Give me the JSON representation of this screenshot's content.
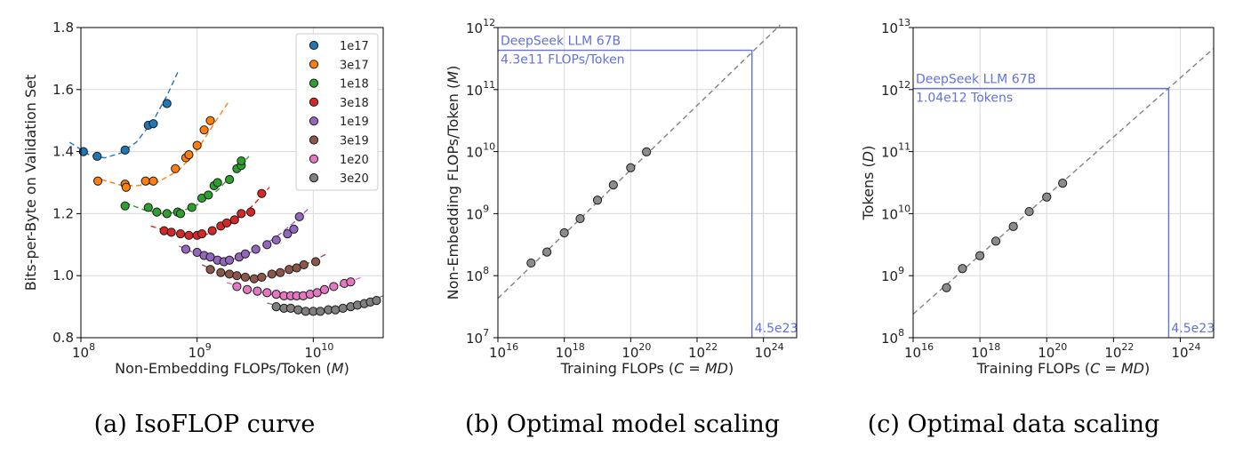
{
  "captions": [
    "(a) IsoFLOP curve",
    "(b) Optimal model scaling",
    "(c) Optimal data scaling"
  ],
  "chart_data": [
    {
      "type": "scatter",
      "xscale": "log",
      "xlim": [
        100000000.0,
        40000000000.0
      ],
      "ylim": [
        0.8,
        1.8
      ],
      "xlabel": "Non-Embedding FLOPs/Token (",
      "xlabel_var": "M",
      "ylabel": "Bits-per-Byte on Validation Set",
      "xticks": [
        {
          "v": 100000000.0,
          "label": "10",
          "exp": "8"
        },
        {
          "v": 1000000000.0,
          "label": "10",
          "exp": "9"
        },
        {
          "v": 10000000000.0,
          "label": "10",
          "exp": "10"
        }
      ],
      "yticks": [
        {
          "v": 0.8,
          "label": "0.8"
        },
        {
          "v": 1.0,
          "label": "1.0"
        },
        {
          "v": 1.2,
          "label": "1.2"
        },
        {
          "v": 1.4,
          "label": "1.4"
        },
        {
          "v": 1.6,
          "label": "1.6"
        },
        {
          "v": 1.8,
          "label": "1.8"
        }
      ],
      "grid": true,
      "legend_position": "top-right",
      "series": [
        {
          "name": "1e17",
          "color": "#1f77b4",
          "points": [
            [
              105000000.0,
              1.4
            ],
            [
              138000000.0,
              1.385
            ],
            [
              240000000.0,
              1.405
            ],
            [
              380000000.0,
              1.485
            ],
            [
              420000000.0,
              1.49
            ],
            [
              550000000.0,
              1.555
            ]
          ],
          "fit": [
            [
              80000000.0,
              1.43
            ],
            [
              120000000.0,
              1.388
            ],
            [
              160000000.0,
              1.38
            ],
            [
              220000000.0,
              1.395
            ],
            [
              300000000.0,
              1.43
            ],
            [
              420000000.0,
              1.5
            ],
            [
              550000000.0,
              1.58
            ],
            [
              700000000.0,
              1.665
            ]
          ]
        },
        {
          "name": "3e17",
          "color": "#ff7f0e",
          "points": [
            [
              140000000.0,
              1.305
            ],
            [
              240000000.0,
              1.295
            ],
            [
              245000000.0,
              1.285
            ],
            [
              360000000.0,
              1.305
            ],
            [
              420000000.0,
              1.305
            ],
            [
              650000000.0,
              1.345
            ],
            [
              800000000.0,
              1.38
            ],
            [
              850000000.0,
              1.39
            ],
            [
              1000000000.0,
              1.42
            ],
            [
              1150000000.0,
              1.47
            ],
            [
              1300000000.0,
              1.5
            ]
          ],
          "fit": [
            [
              150000000.0,
              1.31
            ],
            [
              220000000.0,
              1.292
            ],
            [
              300000000.0,
              1.29
            ],
            [
              450000000.0,
              1.3
            ],
            [
              700000000.0,
              1.34
            ],
            [
              1000000000.0,
              1.405
            ],
            [
              1400000000.0,
              1.49
            ],
            [
              1900000000.0,
              1.565
            ]
          ]
        },
        {
          "name": "1e18",
          "color": "#2ca02c",
          "points": [
            [
              240000000.0,
              1.225
            ],
            [
              380000000.0,
              1.22
            ],
            [
              450000000.0,
              1.205
            ],
            [
              550000000.0,
              1.2
            ],
            [
              680000000.0,
              1.205
            ],
            [
              720000000.0,
              1.2
            ],
            [
              900000000.0,
              1.22
            ],
            [
              1100000000.0,
              1.25
            ],
            [
              1250000000.0,
              1.26
            ],
            [
              1400000000.0,
              1.29
            ],
            [
              1500000000.0,
              1.3
            ],
            [
              1900000000.0,
              1.31
            ],
            [
              2200000000.0,
              1.345
            ],
            [
              2400000000.0,
              1.355
            ],
            [
              2400000000.0,
              1.37
            ]
          ],
          "fit": [
            [
              240000000.0,
              1.235
            ],
            [
              350000000.0,
              1.212
            ],
            [
              500000000.0,
              1.2
            ],
            [
              700000000.0,
              1.205
            ],
            [
              1000000000.0,
              1.228
            ],
            [
              1500000000.0,
              1.275
            ],
            [
              2100000000.0,
              1.335
            ],
            [
              2800000000.0,
              1.385
            ]
          ]
        },
        {
          "name": "3e18",
          "color": "#d62728",
          "points": [
            [
              520000000.0,
              1.145
            ],
            [
              600000000.0,
              1.14
            ],
            [
              720000000.0,
              1.135
            ],
            [
              850000000.0,
              1.13
            ],
            [
              1000000000.0,
              1.13
            ],
            [
              1100000000.0,
              1.135
            ],
            [
              1350000000.0,
              1.145
            ],
            [
              1600000000.0,
              1.16
            ],
            [
              1800000000.0,
              1.17
            ],
            [
              2100000000.0,
              1.18
            ],
            [
              2400000000.0,
              1.2
            ],
            [
              2900000000.0,
              1.205
            ],
            [
              3600000000.0,
              1.265
            ]
          ],
          "fit": [
            [
              400000000.0,
              1.16
            ],
            [
              600000000.0,
              1.14
            ],
            [
              900000000.0,
              1.128
            ],
            [
              1300000000.0,
              1.135
            ],
            [
              2000000000.0,
              1.17
            ],
            [
              3000000000.0,
              1.225
            ],
            [
              4200000000.0,
              1.285
            ]
          ]
        },
        {
          "name": "1e19",
          "color": "#9467bd",
          "points": [
            [
              800000000.0,
              1.085
            ],
            [
              1000000000.0,
              1.075
            ],
            [
              1150000000.0,
              1.065
            ],
            [
              1300000000.0,
              1.06
            ],
            [
              1500000000.0,
              1.05
            ],
            [
              1700000000.0,
              1.045
            ],
            [
              1900000000.0,
              1.05
            ],
            [
              2300000000.0,
              1.06
            ],
            [
              2600000000.0,
              1.07
            ],
            [
              3200000000.0,
              1.085
            ],
            [
              4000000000.0,
              1.1
            ],
            [
              4800000000.0,
              1.115
            ],
            [
              6000000000.0,
              1.135
            ],
            [
              6800000000.0,
              1.15
            ],
            [
              7600000000.0,
              1.19
            ]
          ],
          "fit": [
            [
              700000000.0,
              1.095
            ],
            [
              1000000000.0,
              1.07
            ],
            [
              1500000000.0,
              1.05
            ],
            [
              2200000000.0,
              1.055
            ],
            [
              3500000000.0,
              1.09
            ],
            [
              5000000000.0,
              1.13
            ],
            [
              7000000000.0,
              1.175
            ],
            [
              9000000000.0,
              1.215
            ]
          ]
        },
        {
          "name": "3e19",
          "color": "#8c564b",
          "points": [
            [
              1300000000.0,
              1.02
            ],
            [
              1600000000.0,
              1.01
            ],
            [
              1900000000.0,
              1.005
            ],
            [
              2200000000.0,
              1.0
            ],
            [
              2600000000.0,
              0.995
            ],
            [
              3100000000.0,
              0.99
            ],
            [
              3600000000.0,
              0.995
            ],
            [
              4400000000.0,
              1.005
            ],
            [
              5200000000.0,
              1.01
            ],
            [
              6200000000.0,
              1.02
            ],
            [
              7200000000.0,
              1.025
            ],
            [
              8300000000.0,
              1.035
            ],
            [
              10500000000.0,
              1.045
            ]
          ],
          "fit": [
            [
              1100000000.0,
              1.035
            ],
            [
              1600000000.0,
              1.01
            ],
            [
              2500000000.0,
              0.995
            ],
            [
              3800000000.0,
              0.995
            ],
            [
              6000000000.0,
              1.015
            ],
            [
              9000000000.0,
              1.04
            ],
            [
              13000000000.0,
              1.07
            ]
          ]
        },
        {
          "name": "1e20",
          "color": "#e377c2",
          "points": [
            [
              2200000000.0,
              0.965
            ],
            [
              2700000000.0,
              0.955
            ],
            [
              3300000000.0,
              0.95
            ],
            [
              4000000000.0,
              0.945
            ],
            [
              4800000000.0,
              0.94
            ],
            [
              5600000000.0,
              0.935
            ],
            [
              6400000000.0,
              0.935
            ],
            [
              7200000000.0,
              0.935
            ],
            [
              8200000000.0,
              0.935
            ],
            [
              9400000000.0,
              0.94
            ],
            [
              10800000000.0,
              0.945
            ],
            [
              12500000000.0,
              0.955
            ],
            [
              15000000000.0,
              0.965
            ],
            [
              18500000000.0,
              0.975
            ],
            [
              21000000000.0,
              0.98
            ]
          ],
          "fit": [
            [
              1800000000.0,
              0.978
            ],
            [
              2800000000.0,
              0.955
            ],
            [
              4500000000.0,
              0.938
            ],
            [
              7000000000.0,
              0.932
            ],
            [
              11000000000.0,
              0.945
            ],
            [
              17000000000.0,
              0.968
            ],
            [
              26000000000.0,
              0.995
            ]
          ]
        },
        {
          "name": "3e20",
          "color": "#7f7f7f",
          "points": [
            [
              4800000000.0,
              0.9
            ],
            [
              5600000000.0,
              0.895
            ],
            [
              6400000000.0,
              0.895
            ],
            [
              7400000000.0,
              0.89
            ],
            [
              8600000000.0,
              0.885
            ],
            [
              10000000000.0,
              0.885
            ],
            [
              11500000000.0,
              0.885
            ],
            [
              13500000000.0,
              0.89
            ],
            [
              15500000000.0,
              0.89
            ],
            [
              18000000000.0,
              0.895
            ],
            [
              21000000000.0,
              0.9
            ],
            [
              24000000000.0,
              0.905
            ],
            [
              27500000000.0,
              0.91
            ],
            [
              31000000000.0,
              0.915
            ],
            [
              35000000000.0,
              0.92
            ]
          ],
          "fit": [
            [
              4000000000.0,
              0.912
            ],
            [
              6000000000.0,
              0.895
            ],
            [
              10000000000.0,
              0.884
            ],
            [
              16000000000.0,
              0.888
            ],
            [
              25000000000.0,
              0.905
            ],
            [
              40000000000.0,
              0.935
            ]
          ]
        }
      ]
    },
    {
      "type": "scatter",
      "xscale": "log",
      "yscale": "log",
      "xlim": [
        1e+16,
        1e+25
      ],
      "ylim": [
        10000000.0,
        1000000000000.0
      ],
      "xlabel": "Training FLOPs (",
      "xlabel_var": "C",
      "xlabel_eq": " = ",
      "xlabel_var2": "MD",
      "ylabel": "Non-Embedding FLOPs/Token (",
      "ylabel_var": "M",
      "xticks": [
        {
          "v": 1e+16,
          "label": "10",
          "exp": "16"
        },
        {
          "v": 1e+18,
          "label": "10",
          "exp": "18"
        },
        {
          "v": 1e+20,
          "label": "10",
          "exp": "20"
        },
        {
          "v": 1e+22,
          "label": "10",
          "exp": "22"
        },
        {
          "v": 1e+24,
          "label": "10",
          "exp": "24"
        }
      ],
      "yticks": [
        {
          "v": 10000000.0,
          "label": "10",
          "exp": "7"
        },
        {
          "v": 100000000.0,
          "label": "10",
          "exp": "8"
        },
        {
          "v": 1000000000.0,
          "label": "10",
          "exp": "9"
        },
        {
          "v": 10000000000.0,
          "label": "10",
          "exp": "10"
        },
        {
          "v": 100000000000.0,
          "label": "10",
          "exp": "11"
        },
        {
          "v": 1000000000000.0,
          "label": "10",
          "exp": "12"
        }
      ],
      "grid": true,
      "points": [
        [
          1e+17,
          160000000.0
        ],
        [
          3e+17,
          240000000.0
        ],
        [
          1e+18,
          490000000.0
        ],
        [
          3e+18,
          830000000.0
        ],
        [
          1e+19,
          1650000000.0
        ],
        [
          3e+19,
          2900000000.0
        ],
        [
          1e+20,
          5500000000.0
        ],
        [
          3e+20,
          9900000000.0
        ]
      ],
      "fit": [
        [
          1e+16,
          43000000.0
        ],
        [
          3.2e+24,
          1100000000000.0
        ]
      ],
      "annotation": {
        "x": 4.5e+23,
        "y": 430000000000.0,
        "line1": "DeepSeek LLM 67B",
        "line2": "4.3e11 FLOPs/Token",
        "xlabel": "4.5e23",
        "color": "#6272d9"
      }
    },
    {
      "type": "scatter",
      "xscale": "log",
      "yscale": "log",
      "xlim": [
        1e+16,
        1e+25
      ],
      "ylim": [
        100000000.0,
        10000000000000.0
      ],
      "xlabel": "Training FLOPs (",
      "xlabel_var": "C",
      "xlabel_eq": " = ",
      "xlabel_var2": "MD",
      "ylabel": "Tokens (",
      "ylabel_var": "D",
      "xticks": [
        {
          "v": 1e+16,
          "label": "10",
          "exp": "16"
        },
        {
          "v": 1e+18,
          "label": "10",
          "exp": "18"
        },
        {
          "v": 1e+20,
          "label": "10",
          "exp": "20"
        },
        {
          "v": 1e+22,
          "label": "10",
          "exp": "22"
        },
        {
          "v": 1e+24,
          "label": "10",
          "exp": "24"
        }
      ],
      "yticks": [
        {
          "v": 100000000.0,
          "label": "10",
          "exp": "8"
        },
        {
          "v": 1000000000.0,
          "label": "10",
          "exp": "9"
        },
        {
          "v": 10000000000.0,
          "label": "10",
          "exp": "10"
        },
        {
          "v": 100000000000.0,
          "label": "10",
          "exp": "11"
        },
        {
          "v": 1000000000000.0,
          "label": "10",
          "exp": "12"
        },
        {
          "v": 10000000000000.0,
          "label": "10",
          "exp": "13"
        }
      ],
      "grid": true,
      "points": [
        [
          1e+17,
          640000000.0
        ],
        [
          3e+17,
          1300000000.0
        ],
        [
          1e+18,
          2100000000.0
        ],
        [
          3e+18,
          3600000000.0
        ],
        [
          1e+19,
          6200000000.0
        ],
        [
          3e+19,
          10800000000.0
        ],
        [
          1e+20,
          18500000000.0
        ],
        [
          3e+20,
          31000000000.0
        ]
      ],
      "fit": [
        [
          1e+16,
          240000000.0
        ],
        [
          1e+25,
          4600000000000.0
        ]
      ],
      "annotation": {
        "x": 4.5e+23,
        "y": 1040000000000.0,
        "line1": "DeepSeek LLM 67B",
        "line2": "1.04e12 Tokens",
        "xlabel": "4.5e23",
        "color": "#6272d9"
      }
    }
  ]
}
